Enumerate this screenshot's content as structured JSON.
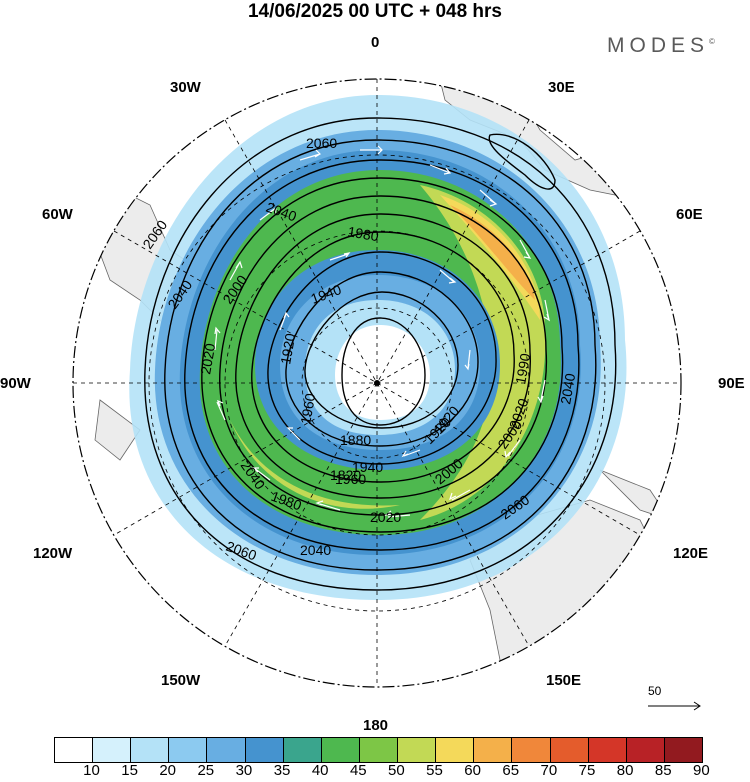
{
  "title": "14/06/2025  00 UTC  + 048 hrs",
  "logo": "MODES",
  "logo_mark": "©",
  "longitude_labels": {
    "n0": "0",
    "n30e": "30E",
    "n60e": "60E",
    "n90e": "90E",
    "n120e": "120E",
    "n150e": "150E",
    "n180": "180",
    "n150w": "150W",
    "n120w": "120W",
    "n90w": "90W",
    "n60w": "60W",
    "n30w": "30W"
  },
  "contour_labels": [
    "2060",
    "2040",
    "1980",
    "2060",
    "2040",
    "2000",
    "1940",
    "1920",
    "2020",
    "1880",
    "1920",
    "1960",
    "1820",
    "2040",
    "1960",
    "1940",
    "1980",
    "2000",
    "2020",
    "2060",
    "2040",
    "2060",
    "2040",
    "2000",
    "2020",
    "1990",
    "1920"
  ],
  "vector_reference": "50",
  "colorbar": {
    "ticks": [
      "10",
      "15",
      "20",
      "25",
      "30",
      "35",
      "40",
      "45",
      "50",
      "55",
      "60",
      "65",
      "70",
      "75",
      "80",
      "85",
      "90"
    ],
    "colors": [
      "#ffffff",
      "#d5f1fc",
      "#b4e2f7",
      "#8ccaf0",
      "#68aee2",
      "#4593cf",
      "#3aa58d",
      "#4eb84f",
      "#7dc646",
      "#c2d955",
      "#f4d95a",
      "#f4b04a",
      "#f0873a",
      "#e45c2c",
      "#d43628",
      "#b82226",
      "#921a1f"
    ]
  }
}
